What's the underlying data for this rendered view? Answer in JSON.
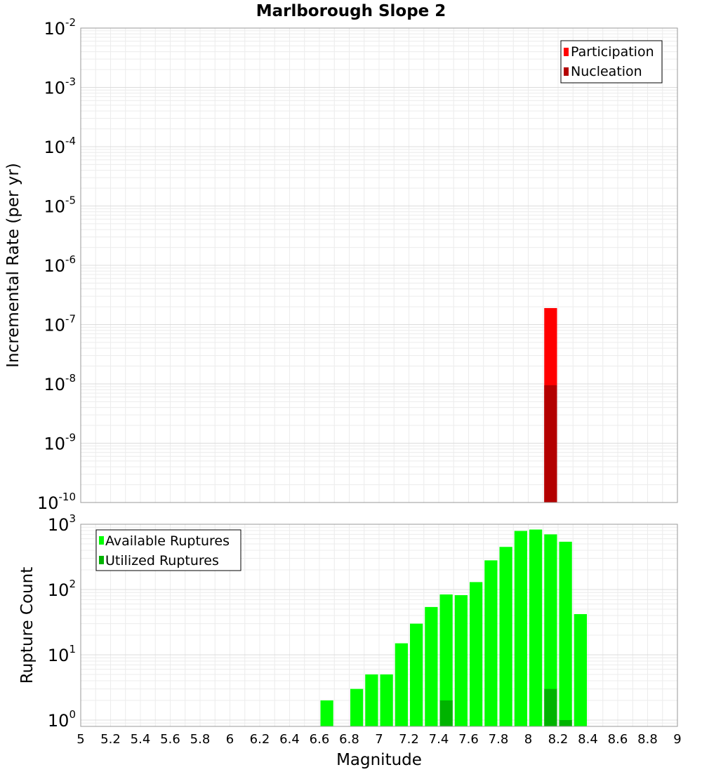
{
  "chart_data": {
    "type": "bar",
    "title": "Marlborough Slope 2",
    "xlabel": "Magnitude",
    "xlim": [
      5,
      9
    ],
    "xticks": [
      "5",
      "5.2",
      "5.4",
      "5.6",
      "5.8",
      "6",
      "6.2",
      "6.4",
      "6.6",
      "6.8",
      "7",
      "7.2",
      "7.4",
      "7.6",
      "7.8",
      "8",
      "8.2",
      "8.4",
      "8.6",
      "8.8",
      "9"
    ],
    "panels": [
      {
        "name": "rate",
        "ylabel": "Incremental Rate (per yr)",
        "yscale": "log",
        "ylim": [
          1e-10,
          0.01
        ],
        "yticks": [
          {
            "base": "10",
            "exp": "-10",
            "value": 1e-10
          },
          {
            "base": "10",
            "exp": "-9",
            "value": 1e-09
          },
          {
            "base": "10",
            "exp": "-8",
            "value": 1e-08
          },
          {
            "base": "10",
            "exp": "-7",
            "value": 1e-07
          },
          {
            "base": "10",
            "exp": "-6",
            "value": 1e-06
          },
          {
            "base": "10",
            "exp": "-5",
            "value": 1e-05
          },
          {
            "base": "10",
            "exp": "-4",
            "value": 0.0001
          },
          {
            "base": "10",
            "exp": "-3",
            "value": 0.001
          },
          {
            "base": "10",
            "exp": "-2",
            "value": 0.01
          }
        ],
        "legend": {
          "position": "top-right"
        },
        "series": [
          {
            "name": "Participation",
            "color": "#ff0000",
            "x": [
              8.15
            ],
            "values": [
              1.9e-07
            ]
          },
          {
            "name": "Nucleation",
            "color": "#b30000",
            "x": [
              8.15
            ],
            "values": [
              9.5e-09
            ]
          }
        ]
      },
      {
        "name": "count",
        "ylabel": "Rupture Count",
        "yscale": "log",
        "ylim": [
          0.8,
          1000
        ],
        "yticks": [
          {
            "base": "10",
            "exp": "0",
            "value": 1
          },
          {
            "base": "10",
            "exp": "1",
            "value": 10
          },
          {
            "base": "10",
            "exp": "2",
            "value": 100
          },
          {
            "base": "10",
            "exp": "3",
            "value": 1000
          }
        ],
        "legend": {
          "position": "top-left"
        },
        "series": [
          {
            "name": "Available Ruptures",
            "color": "#00ff00",
            "x": [
              6.65,
              6.85,
              6.95,
              7.05,
              7.15,
              7.25,
              7.35,
              7.45,
              7.55,
              7.65,
              7.75,
              7.85,
              7.95,
              8.05,
              8.15,
              8.25,
              8.35
            ],
            "values": [
              2,
              3,
              5,
              5,
              15,
              30,
              54,
              84,
              82,
              130,
              280,
              450,
              790,
              830,
              700,
              540,
              42
            ]
          },
          {
            "name": "Utilized Ruptures",
            "color": "#00b300",
            "x": [
              7.45,
              8.15,
              8.25
            ],
            "values": [
              2,
              3,
              1
            ]
          }
        ]
      }
    ]
  }
}
